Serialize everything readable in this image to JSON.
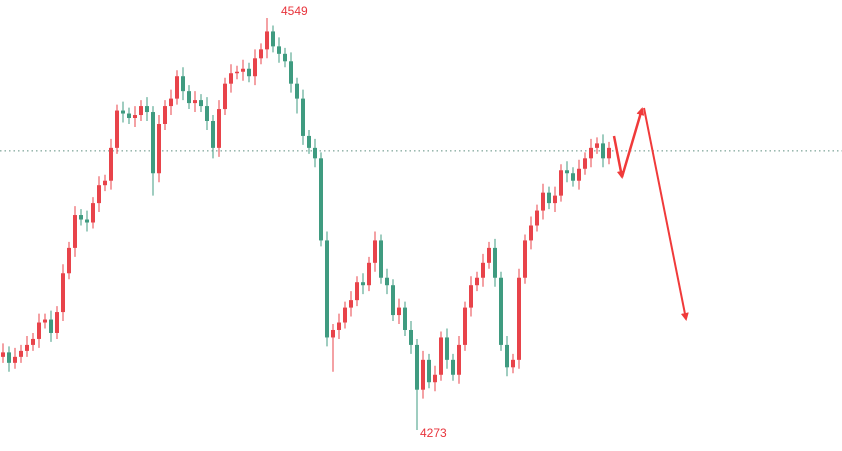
{
  "chart_data": {
    "type": "candlestick",
    "title": "",
    "xlabel": "",
    "ylabel": "",
    "ylim": [
      4273,
      4549
    ],
    "grid": false,
    "colors": {
      "up": "#e8434a",
      "down": "#3f9b80",
      "reference_line": "#5f8f80",
      "arrow": "#f03a3a"
    },
    "reference_line_value": 4460,
    "annotations": {
      "high_label": "4549",
      "low_label": "4273"
    },
    "ohlc": [
      [
        4322,
        4331,
        4318,
        4325
      ],
      [
        4325,
        4329,
        4312,
        4318
      ],
      [
        4318,
        4328,
        4314,
        4322
      ],
      [
        4322,
        4330,
        4318,
        4326
      ],
      [
        4326,
        4336,
        4322,
        4330
      ],
      [
        4330,
        4338,
        4326,
        4334
      ],
      [
        4334,
        4351,
        4328,
        4345
      ],
      [
        4345,
        4351,
        4341,
        4347
      ],
      [
        4347,
        4353,
        4332,
        4338
      ],
      [
        4338,
        4356,
        4334,
        4352
      ],
      [
        4352,
        4384,
        4346,
        4378
      ],
      [
        4378,
        4399,
        4374,
        4395
      ],
      [
        4395,
        4423,
        4389,
        4417
      ],
      [
        4417,
        4421,
        4410,
        4414
      ],
      [
        4414,
        4420,
        4406,
        4412
      ],
      [
        4412,
        4429,
        4408,
        4425
      ],
      [
        4425,
        4443,
        4419,
        4437
      ],
      [
        4437,
        4444,
        4433,
        4440
      ],
      [
        4440,
        4468,
        4434,
        4462
      ],
      [
        4462,
        4491,
        4458,
        4487
      ],
      [
        4487,
        4493,
        4479,
        4485
      ],
      [
        4485,
        4489,
        4478,
        4482
      ],
      [
        4482,
        4490,
        4476,
        4484
      ],
      [
        4484,
        4494,
        4480,
        4490
      ],
      [
        4490,
        4496,
        4480,
        4486
      ],
      [
        4486,
        4490,
        4430,
        4445
      ],
      [
        4445,
        4484,
        4439,
        4478
      ],
      [
        4478,
        4494,
        4474,
        4490
      ],
      [
        4490,
        4501,
        4484,
        4495
      ],
      [
        4495,
        4514,
        4491,
        4510
      ],
      [
        4510,
        4516,
        4494,
        4500
      ],
      [
        4500,
        4504,
        4488,
        4492
      ],
      [
        4492,
        4500,
        4486,
        4494
      ],
      [
        4494,
        4498,
        4486,
        4490
      ],
      [
        4490,
        4496,
        4474,
        4480
      ],
      [
        4480,
        4484,
        4455,
        4462
      ],
      [
        4462,
        4494,
        4456,
        4488
      ],
      [
        4488,
        4509,
        4484,
        4505
      ],
      [
        4505,
        4518,
        4499,
        4512
      ],
      [
        4512,
        4517,
        4508,
        4513
      ],
      [
        4513,
        4521,
        4507,
        4515
      ],
      [
        4515,
        4519,
        4506,
        4510
      ],
      [
        4510,
        4528,
        4504,
        4522
      ],
      [
        4522,
        4532,
        4518,
        4528
      ],
      [
        4528,
        4549,
        4522,
        4540
      ],
      [
        4540,
        4544,
        4526,
        4530
      ],
      [
        4530,
        4536,
        4519,
        4525
      ],
      [
        4525,
        4529,
        4516,
        4520
      ],
      [
        4520,
        4526,
        4499,
        4505
      ],
      [
        4505,
        4509,
        4485,
        4495
      ],
      [
        4495,
        4501,
        4464,
        4470
      ],
      [
        4470,
        4474,
        4458,
        4462
      ],
      [
        4462,
        4468,
        4449,
        4455
      ],
      [
        4455,
        4459,
        4396,
        4400
      ],
      [
        4400,
        4406,
        4329,
        4335
      ],
      [
        4335,
        4344,
        4312,
        4340
      ],
      [
        4340,
        4351,
        4334,
        4345
      ],
      [
        4345,
        4359,
        4341,
        4355
      ],
      [
        4355,
        4366,
        4349,
        4360
      ],
      [
        4360,
        4376,
        4356,
        4372
      ],
      [
        4372,
        4378,
        4364,
        4370
      ],
      [
        4370,
        4389,
        4366,
        4385
      ],
      [
        4385,
        4406,
        4379,
        4400
      ],
      [
        4400,
        4404,
        4371,
        4375
      ],
      [
        4375,
        4381,
        4364,
        4370
      ],
      [
        4370,
        4374,
        4346,
        4350
      ],
      [
        4350,
        4361,
        4344,
        4355
      ],
      [
        4355,
        4359,
        4336,
        4340
      ],
      [
        4340,
        4346,
        4324,
        4330
      ],
      [
        4330,
        4334,
        4273,
        4300
      ],
      [
        4300,
        4326,
        4294,
        4320
      ],
      [
        4320,
        4324,
        4301,
        4305
      ],
      [
        4305,
        4316,
        4299,
        4310
      ],
      [
        4310,
        4339,
        4306,
        4335
      ],
      [
        4335,
        4341,
        4314,
        4320
      ],
      [
        4320,
        4324,
        4306,
        4310
      ],
      [
        4310,
        4336,
        4304,
        4330
      ],
      [
        4330,
        4359,
        4326,
        4355
      ],
      [
        4355,
        4376,
        4349,
        4370
      ],
      [
        4370,
        4379,
        4366,
        4375
      ],
      [
        4375,
        4391,
        4369,
        4385
      ],
      [
        4385,
        4399,
        4381,
        4395
      ],
      [
        4395,
        4401,
        4369,
        4375
      ],
      [
        4375,
        4379,
        4326,
        4330
      ],
      [
        4330,
        4336,
        4309,
        4315
      ],
      [
        4315,
        4324,
        4311,
        4320
      ],
      [
        4320,
        4381,
        4314,
        4375
      ],
      [
        4375,
        4404,
        4371,
        4400
      ],
      [
        4400,
        4416,
        4394,
        4410
      ],
      [
        4410,
        4424,
        4406,
        4420
      ],
      [
        4420,
        4438,
        4414,
        4432
      ],
      [
        4432,
        4436,
        4421,
        4425
      ],
      [
        4425,
        4436,
        4419,
        4430
      ],
      [
        4430,
        4451,
        4426,
        4447
      ],
      [
        4447,
        4453,
        4439,
        4445
      ],
      [
        4445,
        4449,
        4436,
        4440
      ],
      [
        4440,
        4454,
        4434,
        4448
      ],
      [
        4448,
        4459,
        4444,
        4455
      ],
      [
        4455,
        4468,
        4449,
        4462
      ],
      [
        4462,
        4469,
        4458,
        4465
      ],
      [
        4465,
        4471,
        4449,
        4455
      ],
      [
        4455,
        4466,
        4451,
        4462
      ]
    ]
  }
}
